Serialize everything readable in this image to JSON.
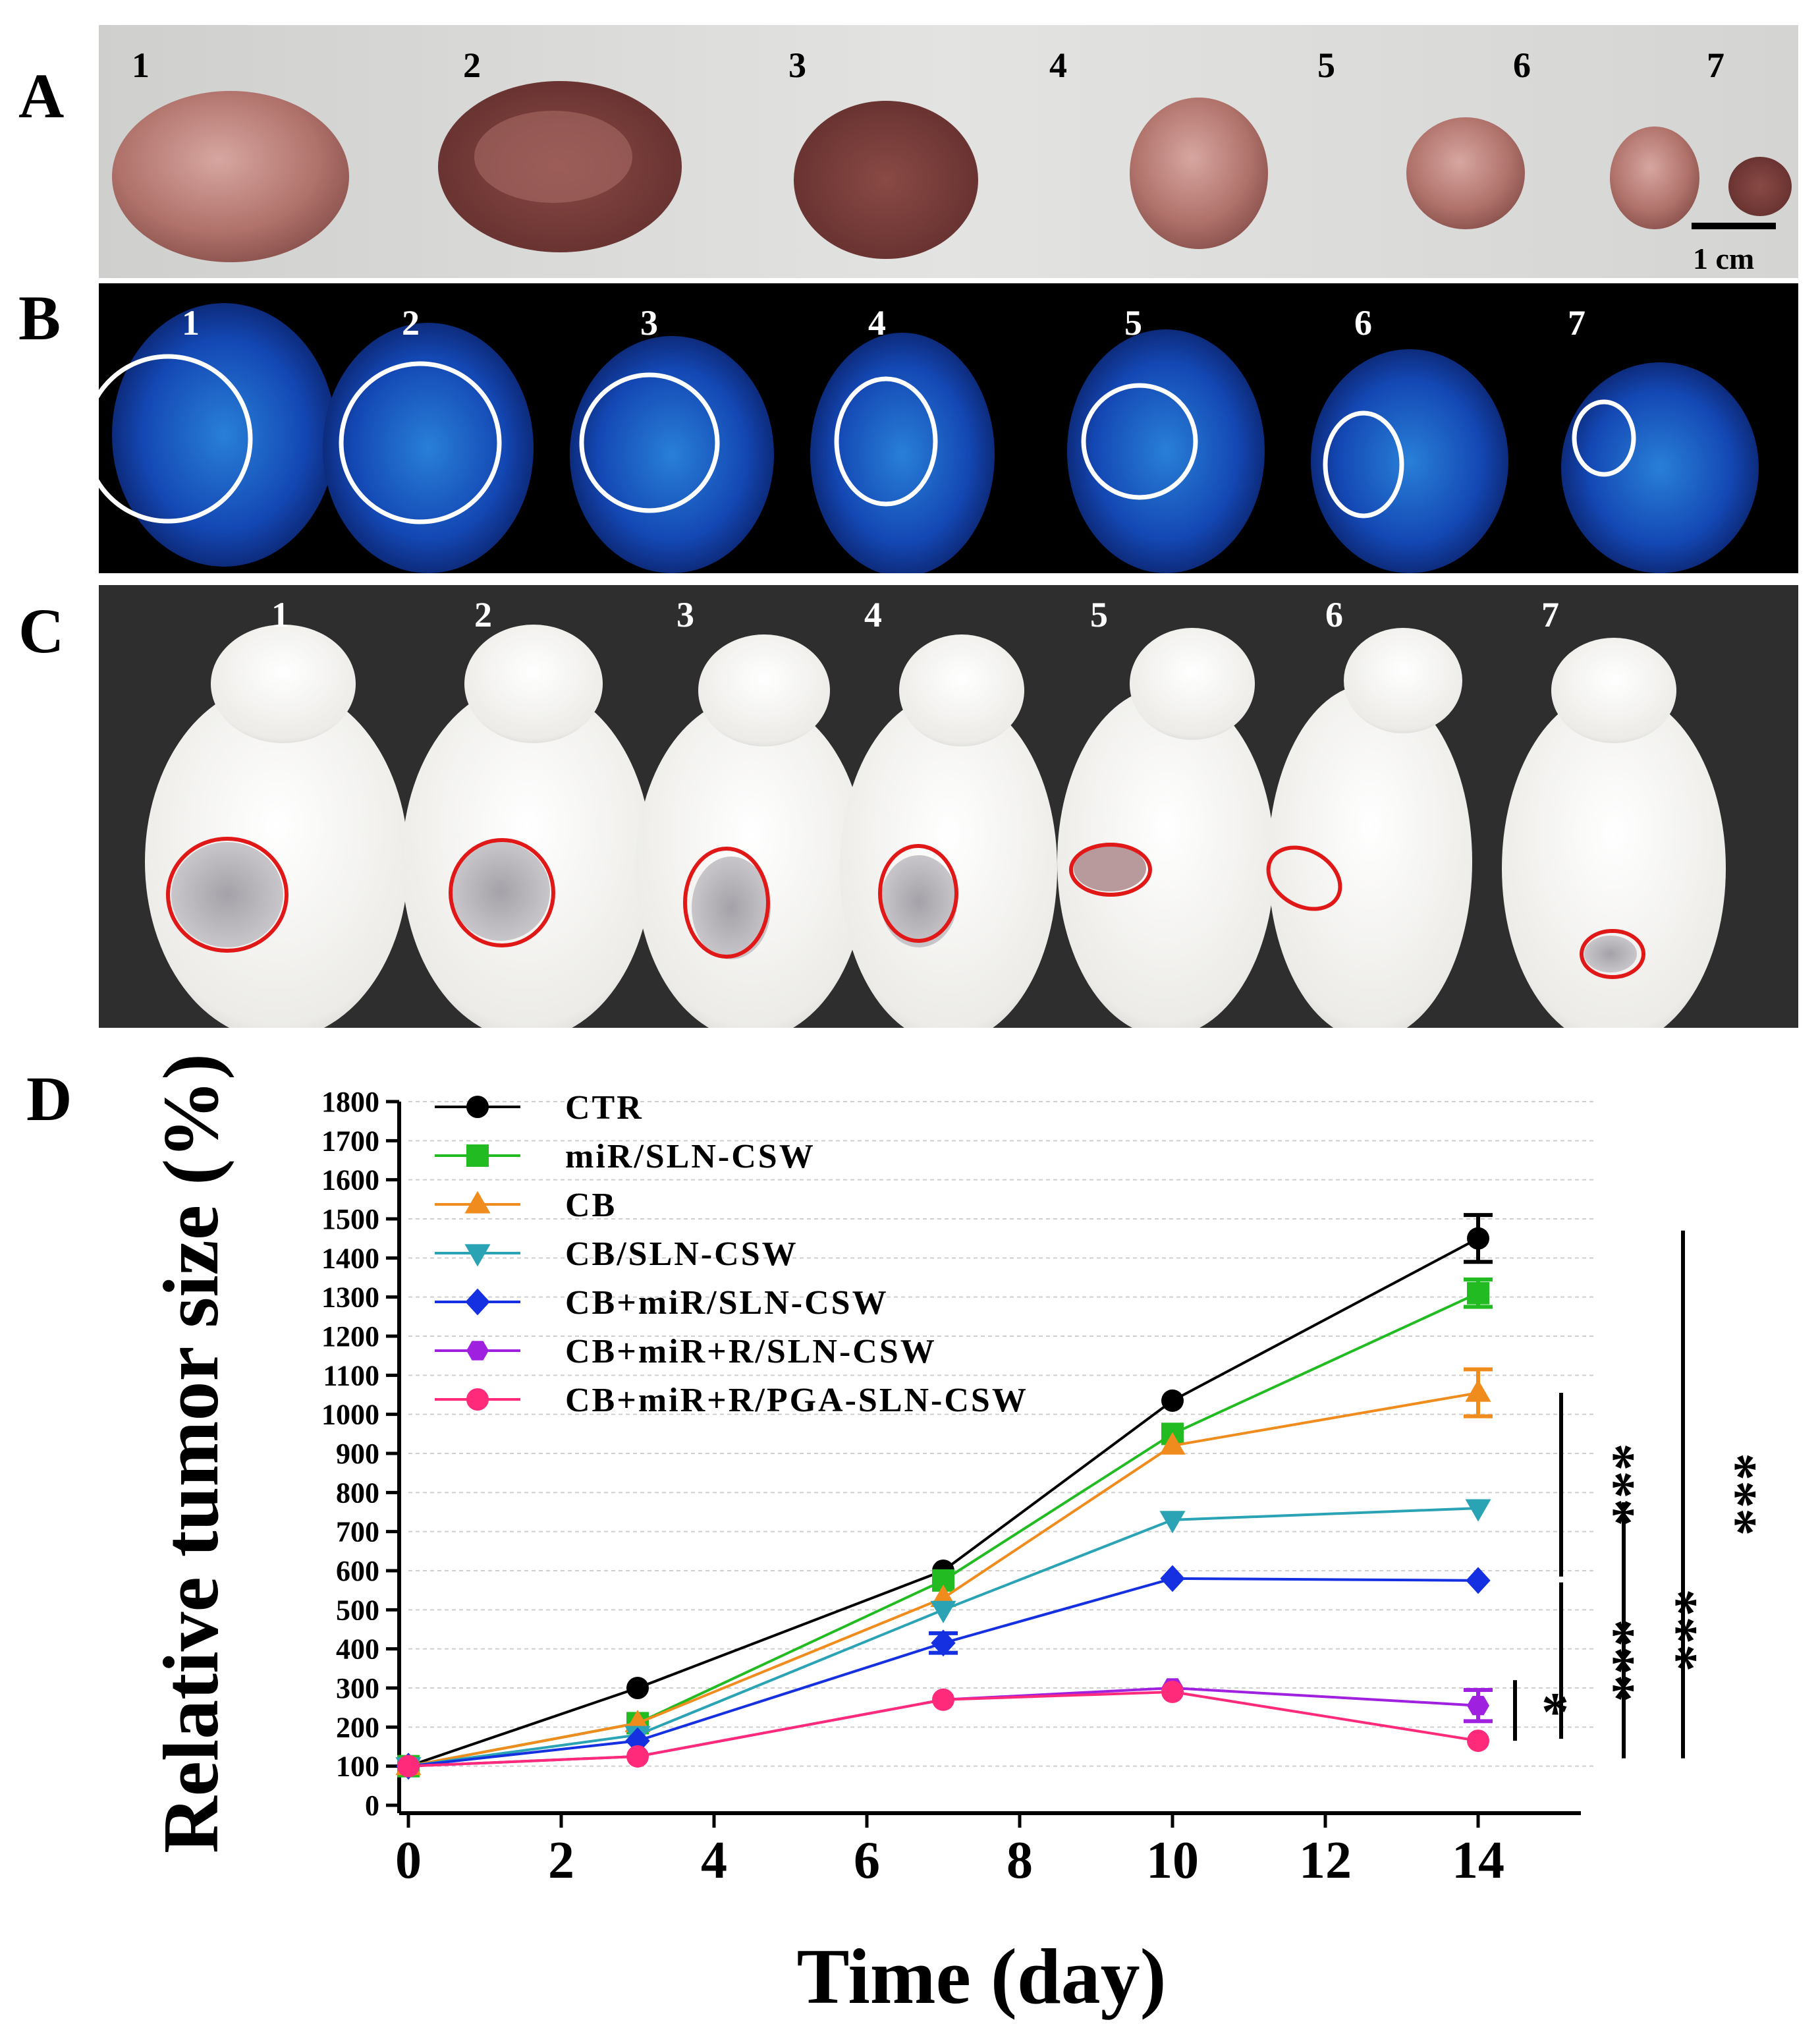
{
  "panels": {
    "a": {
      "letter": "A",
      "numbers": [
        "1",
        "2",
        "3",
        "4",
        "5",
        "6",
        "7"
      ],
      "scale_bar_label": "1 cm",
      "colors": {
        "background": "#d6d6d4",
        "tissue": "#a8645f",
        "tissue_dark": "#6e3a38"
      }
    },
    "b": {
      "letter": "B",
      "numbers": [
        "1",
        "2",
        "3",
        "4",
        "5",
        "6",
        "7"
      ],
      "colors": {
        "background": "#000000",
        "signal": "#1e6de0",
        "highlight": "#2fd0ff",
        "ring": "#ffffff"
      }
    },
    "c": {
      "letter": "C",
      "numbers": [
        "1",
        "2",
        "3",
        "4",
        "5",
        "6",
        "7"
      ],
      "colors": {
        "background": "#2b2b2b",
        "mouse": "#f2f1ee",
        "tumor_ring": "#e01818"
      }
    },
    "d": {
      "letter": "D"
    }
  },
  "chart_data": {
    "type": "line",
    "xlabel": "Time (day)",
    "ylabel": "Relative tumor size (%)",
    "x": [
      0,
      3,
      7,
      10,
      14
    ],
    "xlim": [
      0,
      15
    ],
    "ylim": [
      0,
      1800
    ],
    "xticks": [
      0,
      2,
      4,
      6,
      8,
      10,
      12,
      14
    ],
    "yticks": [
      0,
      100,
      200,
      300,
      400,
      500,
      600,
      700,
      800,
      900,
      1000,
      1100,
      1200,
      1300,
      1400,
      1500,
      1600,
      1700,
      1800
    ],
    "grid": true,
    "legend_position": "top-left",
    "series": [
      {
        "name": "CTR",
        "color": "#000000",
        "marker": "circle",
        "values": [
          100,
          300,
          600,
          1035,
          1450
        ],
        "errors": [
          0,
          0,
          0,
          0,
          60
        ]
      },
      {
        "name": "miR/SLN-CSW",
        "color": "#22bb22",
        "marker": "square",
        "values": [
          100,
          210,
          575,
          950,
          1310
        ],
        "errors": [
          0,
          0,
          0,
          0,
          35
        ]
      },
      {
        "name": "CB",
        "color": "#f08c1e",
        "marker": "triangle-up",
        "values": [
          100,
          210,
          530,
          920,
          1055
        ],
        "errors": [
          0,
          0,
          0,
          0,
          60
        ]
      },
      {
        "name": "CB/SLN-CSW",
        "color": "#2aa3b5",
        "marker": "triangle-down",
        "values": [
          100,
          180,
          500,
          730,
          760
        ],
        "errors": [
          0,
          0,
          0,
          0,
          0
        ]
      },
      {
        "name": "CB+miR/SLN-CSW",
        "color": "#1430e0",
        "marker": "diamond",
        "values": [
          100,
          165,
          415,
          580,
          575
        ],
        "errors": [
          0,
          0,
          25,
          0,
          0
        ]
      },
      {
        "name": "CB+miR+R/SLN-CSW",
        "color": "#a020e0",
        "marker": "hexagon",
        "values": [
          100,
          125,
          270,
          300,
          255
        ],
        "errors": [
          0,
          0,
          0,
          0,
          40
        ]
      },
      {
        "name": "CB+miR+R/PGA-SLN-CSW",
        "color": "#ff2a7a",
        "marker": "circle",
        "values": [
          100,
          125,
          270,
          290,
          165
        ],
        "errors": [
          0,
          0,
          0,
          0,
          0
        ]
      }
    ],
    "significance": [
      {
        "label": "*",
        "from": 165,
        "to": 320
      },
      {
        "label": "***",
        "from": 170,
        "to": 570
      },
      {
        "label": "***",
        "from": 585,
        "to": 1055
      },
      {
        "label": "***",
        "from": 120,
        "to": 775
      },
      {
        "label": "***",
        "from": 120,
        "to": 1470
      }
    ]
  }
}
